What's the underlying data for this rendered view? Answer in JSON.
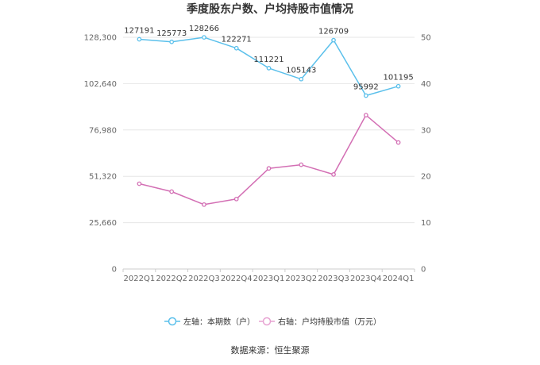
{
  "chart_data": {
    "type": "line",
    "title": "季度股东户数、户均持股市值情况",
    "categories": [
      "2022Q1",
      "2022Q2",
      "2022Q3",
      "2022Q4",
      "2023Q1",
      "2023Q2",
      "2023Q3",
      "2023Q4",
      "2024Q1"
    ],
    "series": [
      {
        "name": "左轴：本期数（户）",
        "axis": "left",
        "color": "#5bc0eb",
        "values": [
          127191,
          125773,
          128266,
          122271,
          111221,
          105143,
          126709,
          95992,
          101195
        ],
        "labels": [
          "127191",
          "125773",
          "128266",
          "122271",
          "111221",
          "105143",
          "126709",
          "95992",
          "101195"
        ]
      },
      {
        "name": "右轴：户均持股市值（万元）",
        "axis": "right",
        "color": "#d36fb4",
        "values": [
          18.4,
          16.7,
          13.9,
          15.1,
          21.7,
          22.5,
          20.4,
          33.2,
          27.3
        ]
      }
    ],
    "left_axis": {
      "min": 0,
      "max": 128300,
      "ticks": [
        0,
        25660,
        51320,
        76980,
        102640,
        128300
      ],
      "tick_labels": [
        "0",
        "25,660",
        "51,320",
        "76,980",
        "102,640",
        "128,300"
      ]
    },
    "right_axis": {
      "min": 0,
      "max": 50,
      "ticks": [
        0,
        10,
        20,
        30,
        40,
        50
      ],
      "tick_labels": [
        "0",
        "10",
        "20",
        "30",
        "40",
        "50"
      ]
    },
    "grid": true,
    "legend_position": "bottom",
    "source": "数据来源：恒生聚源"
  }
}
